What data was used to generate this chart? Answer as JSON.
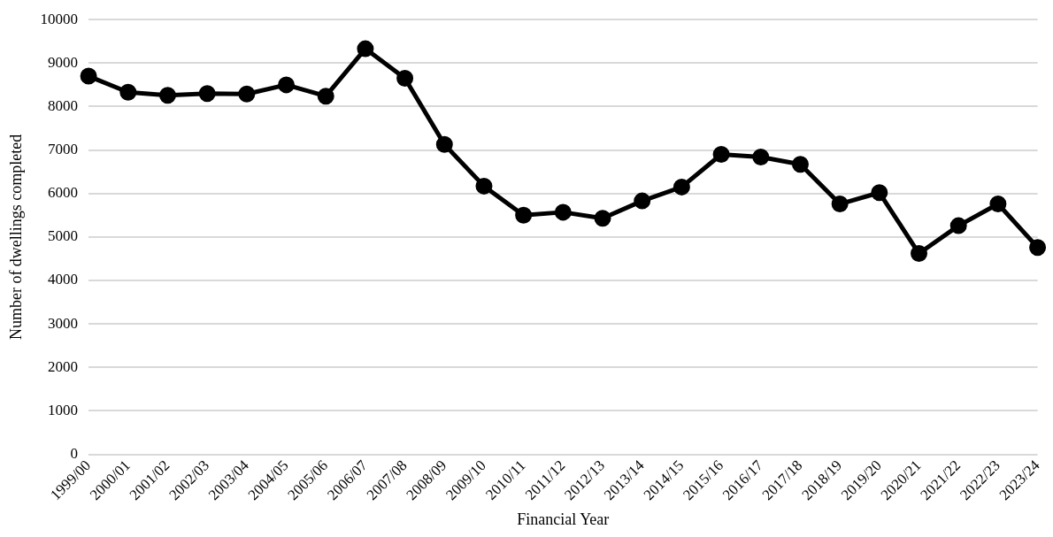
{
  "chart_data": {
    "type": "line",
    "xlabel": "Financial Year",
    "ylabel": "Number of dwellings completed",
    "categories": [
      "1999/00",
      "2000/01",
      "2001/02",
      "2002/03",
      "2003/04",
      "2004/05",
      "2005/06",
      "2006/07",
      "2007/08",
      "2008/09",
      "2009/10",
      "2010/11",
      "2011/12",
      "2012/13",
      "2013/14",
      "2014/15",
      "2015/16",
      "2016/17",
      "2017/18",
      "2018/19",
      "2019/20",
      "2020/21",
      "2021/22",
      "2022/23",
      "2023/24"
    ],
    "series": [
      {
        "color": "#000000",
        "values": [
          8700,
          8330,
          8260,
          8300,
          8290,
          8500,
          8240,
          9330,
          8650,
          7130,
          6170,
          5500,
          5570,
          5430,
          5830,
          6150,
          6900,
          6840,
          6670,
          5760,
          6020,
          4620,
          5260,
          5760,
          4760
        ]
      }
    ],
    "ylim": [
      0,
      10000
    ],
    "yticks": [
      0,
      1000,
      2000,
      3000,
      4000,
      5000,
      6000,
      7000,
      8000,
      9000,
      10000
    ],
    "grid": "y",
    "legend": false,
    "marker": "circle",
    "line_style": "solid"
  }
}
